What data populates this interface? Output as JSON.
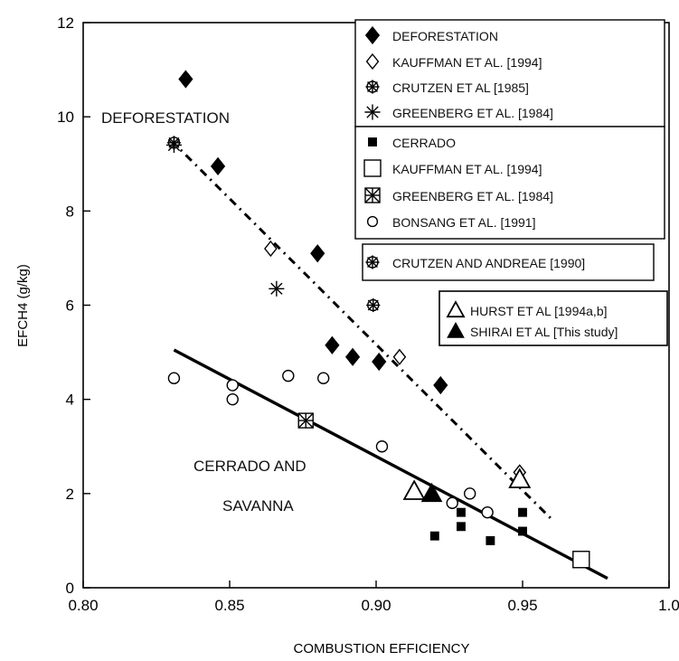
{
  "chart_data": {
    "type": "scatter",
    "xlabel": "COMBUSTION EFFICIENCY",
    "ylabel": "EFCH4 (g/kg)",
    "xlim": [
      0.8,
      1.0
    ],
    "ylim": [
      0,
      12
    ],
    "xticks": [
      "0.80",
      "0.85",
      "0.90",
      "0.95",
      "1.0"
    ],
    "yticks": [
      "0",
      "2",
      "4",
      "6",
      "8",
      "10",
      "12"
    ],
    "annotations": [
      {
        "id": "deforestation",
        "text": "DEFORESTATION"
      },
      {
        "id": "cerrado1",
        "text": "CERRADO AND"
      },
      {
        "id": "cerrado2",
        "text": "SAVANNA"
      }
    ],
    "legend": [
      {
        "marker": "filled-diamond",
        "label": "DEFORESTATION"
      },
      {
        "marker": "open-diamond",
        "label": "KAUFFMAN ET AL. [1994]"
      },
      {
        "marker": "crossed-circle",
        "label": "CRUTZEN ET AL [1985]"
      },
      {
        "marker": "asterisk",
        "label": "GREENBERG ET AL. [1984]"
      },
      {
        "marker": "small-filled-square",
        "label": "CERRADO"
      },
      {
        "marker": "open-square",
        "label": "KAUFFMAN ET AL.  [1994]"
      },
      {
        "marker": "boxed-cross",
        "label": "GREENBERG ET AL. [1984]"
      },
      {
        "marker": "open-circle",
        "label": "BONSANG ET AL. [1991]"
      },
      {
        "marker": "crossed-circle",
        "label": "CRUTZEN AND ANDREAE [1990]"
      },
      {
        "marker": "open-triangle",
        "label": "HURST ET AL [1994a,b]"
      },
      {
        "marker": "filled-triangle",
        "label": "SHIRAI ET AL [This study]"
      }
    ],
    "series": [
      {
        "name": "DEFORESTATION",
        "marker": "filled-diamond",
        "x": [
          0.835,
          0.846,
          0.88,
          0.885,
          0.892,
          0.901,
          0.922
        ],
        "y": [
          10.8,
          8.95,
          7.1,
          5.15,
          4.9,
          4.8,
          4.3
        ]
      },
      {
        "name": "KAUFFMAN ET AL. [1994]",
        "marker": "open-diamond",
        "x": [
          0.864,
          0.908,
          0.949
        ],
        "y": [
          7.2,
          4.9,
          2.45
        ]
      },
      {
        "name": "CRUTZEN ET AL [1985]",
        "marker": "crossed-circle",
        "x": [
          0.831
        ],
        "y": [
          9.45
        ]
      },
      {
        "name": "GREENBERG ET AL. [1984]",
        "marker": "asterisk",
        "x": [
          0.831,
          0.866
        ],
        "y": [
          9.4,
          6.35
        ]
      },
      {
        "name": "CERRADO",
        "marker": "small-filled-square",
        "x": [
          0.92,
          0.929,
          0.929,
          0.939,
          0.95,
          0.95
        ],
        "y": [
          1.1,
          1.3,
          1.6,
          1.0,
          1.6,
          1.2
        ]
      },
      {
        "name": "KAUFFMAN ET AL.  [1994]",
        "marker": "open-square",
        "x": [
          0.97
        ],
        "y": [
          0.6
        ]
      },
      {
        "name": "GREENBERG ET AL. [1984]",
        "marker": "boxed-cross",
        "x": [
          0.876
        ],
        "y": [
          3.55
        ]
      },
      {
        "name": "BONSANG ET AL. [1991]",
        "marker": "open-circle",
        "x": [
          0.831,
          0.851,
          0.851,
          0.87,
          0.882,
          0.902,
          0.926,
          0.932,
          0.938
        ],
        "y": [
          4.45,
          4.3,
          4.0,
          4.5,
          4.45,
          3.0,
          1.8,
          2.0,
          1.6
        ]
      },
      {
        "name": "CRUTZEN AND ANDREAE [1990]",
        "marker": "crossed-circle",
        "x": [
          0.899
        ],
        "y": [
          6.0
        ]
      },
      {
        "name": "HURST ET AL [1994a,b]",
        "marker": "open-triangle",
        "x": [
          0.913,
          0.949
        ],
        "y": [
          2.05,
          2.3
        ]
      },
      {
        "name": "SHIRAI ET AL [This study]",
        "marker": "filled-triangle",
        "x": [
          0.919
        ],
        "y": [
          2.0
        ]
      }
    ],
    "fit_lines": [
      {
        "style": "dashed",
        "x": [
          0.83,
          0.96
        ],
        "y": [
          9.5,
          1.45
        ]
      },
      {
        "style": "solid",
        "x": [
          0.831,
          0.979
        ],
        "y": [
          5.05,
          0.2
        ]
      }
    ]
  }
}
